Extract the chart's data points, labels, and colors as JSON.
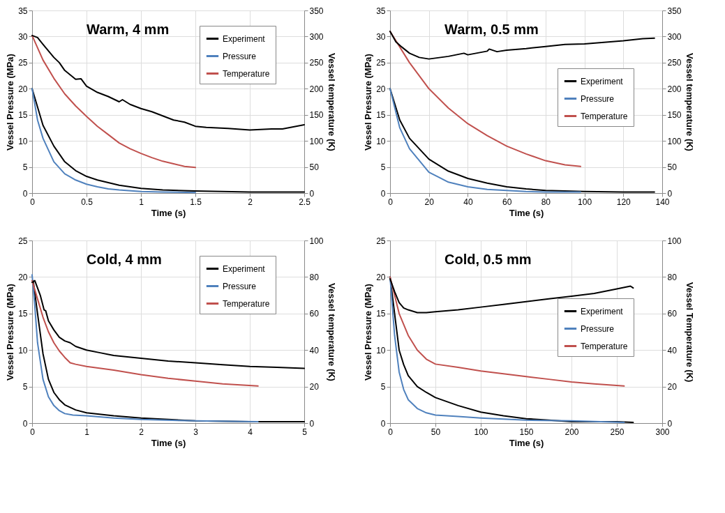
{
  "chart_data": [
    {
      "type": "line",
      "title": "Warm, 4 mm",
      "xlabel": "Time (s)",
      "ylabel": "Vessel Pressure (MPa)",
      "y2label": "Vessel temperature (K)",
      "xlim": [
        0,
        2.5
      ],
      "xticks": [
        0,
        0.5,
        1,
        1.5,
        2,
        2.5
      ],
      "ylim": [
        0,
        35
      ],
      "yticks": [
        0,
        5,
        10,
        15,
        20,
        25,
        30,
        35
      ],
      "y2lim": [
        0,
        350
      ],
      "y2ticks": [
        0,
        50,
        100,
        150,
        200,
        250,
        300,
        350
      ],
      "grid": true,
      "legend": "top right",
      "series": [
        {
          "name": "Experiment",
          "color": "#000000",
          "x": [
            0,
            0.1,
            0.2,
            0.3,
            0.4,
            0.5,
            0.6,
            0.7,
            0.8,
            0.9,
            1.0,
            1.2,
            1.5,
            2.0,
            2.5
          ],
          "values": [
            20,
            13,
            9,
            6,
            4.3,
            3.2,
            2.5,
            2.0,
            1.5,
            1.2,
            0.9,
            0.6,
            0.4,
            0.2,
            0.2
          ]
        },
        {
          "name": "Pressure",
          "color": "#4f81bd",
          "x": [
            0,
            0.05,
            0.1,
            0.2,
            0.3,
            0.4,
            0.5,
            0.6,
            0.7,
            0.8,
            1.0,
            1.2,
            1.5
          ],
          "values": [
            20,
            14,
            10.5,
            6,
            3.7,
            2.5,
            1.7,
            1.2,
            0.8,
            0.6,
            0.3,
            0.2,
            0.1
          ]
        },
        {
          "name": "Temperature",
          "color": "#c0504d",
          "axis": "y2",
          "x": [
            0,
            0.1,
            0.2,
            0.3,
            0.4,
            0.5,
            0.6,
            0.7,
            0.8,
            0.9,
            1.0,
            1.1,
            1.2,
            1.3,
            1.4,
            1.5
          ],
          "values": [
            302,
            255,
            220,
            190,
            167,
            147,
            128,
            112,
            96,
            85,
            76,
            68,
            61,
            56,
            51,
            49
          ]
        },
        {
          "color": "#000000",
          "axis": "y2",
          "x": [
            0,
            0.05,
            0.1,
            0.2,
            0.25,
            0.3,
            0.4,
            0.45,
            0.5,
            0.6,
            0.7,
            0.8,
            0.83,
            0.9,
            1.0,
            1.1,
            1.2,
            1.3,
            1.4,
            1.5,
            1.6,
            1.8,
            2.0,
            2.2,
            2.3,
            2.5
          ],
          "values": [
            302,
            298,
            285,
            260,
            250,
            235,
            218,
            219,
            205,
            193,
            185,
            175,
            179,
            170,
            162,
            156,
            148,
            140,
            136,
            128,
            126,
            124,
            121,
            123,
            123,
            131
          ]
        }
      ]
    },
    {
      "type": "line",
      "title": "Warm, 0.5 mm",
      "xlabel": "Time (s)",
      "ylabel": "Vessel Pressure (MPa)",
      "y2label": "Vessel temperature (K)",
      "xlim": [
        0,
        140
      ],
      "xticks": [
        0,
        20,
        40,
        60,
        80,
        100,
        120,
        140
      ],
      "ylim": [
        0,
        35
      ],
      "yticks": [
        0,
        5,
        10,
        15,
        20,
        25,
        30,
        35
      ],
      "y2lim": [
        0,
        350
      ],
      "y2ticks": [
        0,
        50,
        100,
        150,
        200,
        250,
        300,
        350
      ],
      "grid": true,
      "legend": "right",
      "series": [
        {
          "name": "Experiment",
          "color": "#000000",
          "x": [
            0,
            5,
            10,
            20,
            30,
            40,
            50,
            60,
            70,
            80,
            90,
            100,
            120,
            136
          ],
          "values": [
            20,
            14,
            10.5,
            6.5,
            4.2,
            2.8,
            1.9,
            1.2,
            0.8,
            0.5,
            0.4,
            0.3,
            0.2,
            0.2
          ]
        },
        {
          "name": "Pressure",
          "color": "#4f81bd",
          "x": [
            0,
            5,
            10,
            20,
            30,
            40,
            50,
            60,
            70,
            80,
            98
          ],
          "values": [
            20,
            12.5,
            8.5,
            4,
            2.1,
            1.2,
            0.7,
            0.5,
            0.3,
            0.2,
            0.2
          ]
        },
        {
          "name": "Temperature",
          "color": "#c0504d",
          "axis": "y2",
          "x": [
            0,
            10,
            20,
            30,
            40,
            50,
            60,
            70,
            80,
            90,
            98
          ],
          "values": [
            310,
            250,
            200,
            163,
            133,
            110,
            90,
            75,
            62,
            54,
            51
          ]
        },
        {
          "color": "#000000",
          "axis": "y2",
          "x": [
            0,
            3,
            6,
            10,
            15,
            20,
            30,
            38,
            40,
            50,
            51,
            55,
            60,
            70,
            80,
            90,
            100,
            110,
            120,
            130,
            136
          ],
          "values": [
            310,
            290,
            280,
            268,
            260,
            257,
            262,
            268,
            265,
            272,
            276,
            271,
            274,
            277,
            281,
            285,
            286,
            289,
            292,
            296,
            297
          ]
        }
      ]
    },
    {
      "type": "line",
      "title": "Cold, 4 mm",
      "xlabel": "Time (s)",
      "ylabel": "Vessel Pressure (MPa)",
      "y2label": "Vessel temperature (K)",
      "xlim": [
        0,
        5
      ],
      "xticks": [
        0,
        1,
        2,
        3,
        4,
        5
      ],
      "ylim": [
        0,
        25
      ],
      "yticks": [
        0,
        5,
        10,
        15,
        20,
        25
      ],
      "y2lim": [
        0,
        100
      ],
      "y2ticks": [
        0,
        20,
        40,
        60,
        80,
        100
      ],
      "grid": true,
      "legend": "top right",
      "series": [
        {
          "name": "Experiment",
          "color": "#000000",
          "x": [
            0.02,
            0.1,
            0.2,
            0.3,
            0.4,
            0.5,
            0.6,
            0.8,
            1.0,
            1.5,
            2.0,
            3.0,
            4.0,
            5.0
          ],
          "values": [
            19.5,
            15,
            9.5,
            6,
            4.2,
            3.2,
            2.5,
            1.8,
            1.4,
            1.0,
            0.7,
            0.3,
            0.2,
            0.2
          ]
        },
        {
          "name": "Pressure",
          "color": "#4f81bd",
          "x": [
            0,
            0.05,
            0.1,
            0.2,
            0.3,
            0.4,
            0.5,
            0.6,
            0.75,
            1.0,
            1.5,
            2.0,
            3.0,
            4.15
          ],
          "values": [
            20.3,
            16,
            11,
            6,
            3.6,
            2.4,
            1.7,
            1.3,
            1.1,
            1.0,
            0.7,
            0.5,
            0.3,
            0.2
          ]
        },
        {
          "name": "Temperature",
          "color": "#c0504d",
          "axis": "y2",
          "x": [
            0,
            0.1,
            0.2,
            0.3,
            0.4,
            0.5,
            0.6,
            0.7,
            0.8,
            1.0,
            1.5,
            2.0,
            2.5,
            3.0,
            3.5,
            4.15
          ],
          "values": [
            78,
            68,
            58,
            50,
            44,
            39.5,
            36,
            33,
            32.2,
            31,
            29,
            26.5,
            24.5,
            23,
            21.5,
            20.3
          ]
        },
        {
          "color": "#000000",
          "axis": "y2",
          "x": [
            0,
            0.05,
            0.15,
            0.22,
            0.25,
            0.3,
            0.4,
            0.5,
            0.6,
            0.7,
            0.8,
            1.0,
            1.25,
            1.5,
            2.0,
            2.5,
            3.0,
            3.5,
            4.0,
            4.5,
            5.0
          ],
          "values": [
            77,
            78,
            70,
            62,
            61.5,
            56,
            51,
            47,
            45,
            44,
            42,
            40,
            38.5,
            37,
            35.5,
            34,
            33,
            32,
            31,
            30.5,
            30
          ]
        }
      ]
    },
    {
      "type": "line",
      "title": "Cold, 0.5 mm",
      "xlabel": "Time (s)",
      "ylabel": "Vessel Pressure (MPa)",
      "y2label": "Vessel Temperature (K)",
      "xlim": [
        0,
        300
      ],
      "xticks": [
        0,
        50,
        100,
        150,
        200,
        250,
        300
      ],
      "ylim": [
        0,
        25
      ],
      "yticks": [
        0,
        5,
        10,
        15,
        20,
        25
      ],
      "y2lim": [
        0,
        100
      ],
      "y2ticks": [
        0,
        20,
        40,
        60,
        80,
        100
      ],
      "grid": true,
      "legend": "right",
      "series": [
        {
          "name": "Experiment",
          "color": "#000000",
          "x": [
            0,
            5,
            10,
            15,
            20,
            30,
            40,
            50,
            75,
            100,
            125,
            150,
            175,
            200,
            250,
            268
          ],
          "values": [
            20,
            15,
            10,
            8,
            6.5,
            5,
            4.2,
            3.5,
            2.4,
            1.5,
            1,
            0.6,
            0.4,
            0.2,
            0.2,
            0.1
          ]
        },
        {
          "name": "Pressure",
          "color": "#4f81bd",
          "x": [
            0,
            5,
            10,
            15,
            20,
            30,
            40,
            50,
            75,
            100,
            150,
            200,
            258
          ],
          "values": [
            20,
            12,
            7,
            4.6,
            3.2,
            2,
            1.4,
            1.1,
            0.9,
            0.7,
            0.4,
            0.3,
            0.1
          ]
        },
        {
          "name": "Temperature",
          "color": "#c0504d",
          "axis": "y2",
          "x": [
            0,
            5,
            10,
            20,
            30,
            40,
            50,
            75,
            100,
            125,
            150,
            175,
            200,
            225,
            258
          ],
          "values": [
            80,
            70,
            60,
            48,
            40,
            35,
            32.3,
            30.5,
            28.5,
            27,
            25.5,
            24,
            22.5,
            21.5,
            20.3
          ]
        },
        {
          "color": "#000000",
          "axis": "y2",
          "x": [
            0,
            5,
            10,
            15,
            20,
            30,
            40,
            50,
            75,
            100,
            125,
            150,
            175,
            200,
            225,
            250,
            265,
            268
          ],
          "values": [
            79,
            72,
            66,
            63,
            62,
            60.5,
            60.5,
            61,
            62,
            63.5,
            65,
            66.5,
            68,
            69.5,
            71,
            73.5,
            75,
            74
          ]
        }
      ]
    }
  ]
}
